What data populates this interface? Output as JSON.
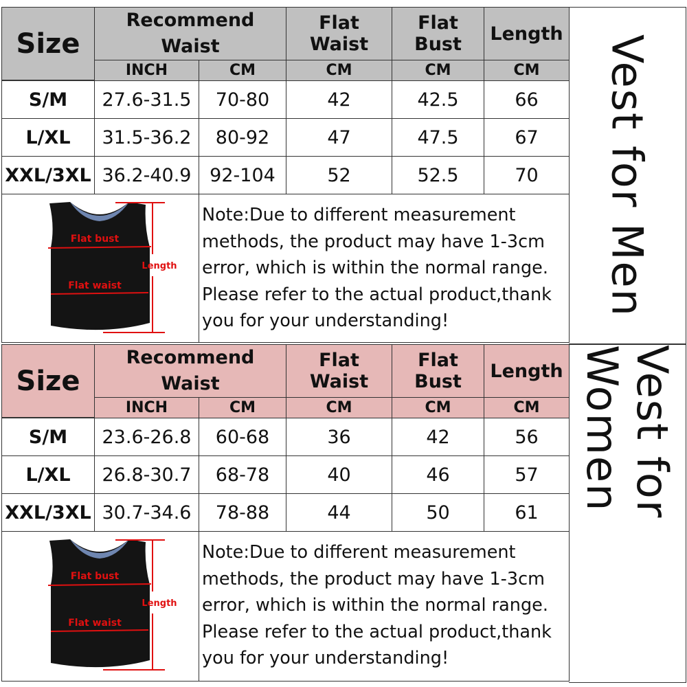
{
  "header": {
    "size": "Size",
    "recommend_waist": "Recommend Waist",
    "flat_waist": "Flat Waist",
    "flat_bust": "Flat Bust",
    "length": "Length",
    "inch": "INCH",
    "cm": "CM"
  },
  "diagram_labels": {
    "flat_bust": "Flat bust",
    "flat_waist": "Flat waist",
    "length": "Length"
  },
  "note": [
    "Note:Due to different measurement",
    "methods, the product may have 1-3cm",
    "error, which is within the normal range.",
    "Please refer to the actual product,thank",
    "you for your understanding!"
  ],
  "colors": {
    "men_header": "#c0c0c0",
    "women_header": "#e6b8b7",
    "measure_lines": "#e01010"
  },
  "men": {
    "title": "Vest for Men",
    "rows": [
      {
        "size": "S/M",
        "inch": "27.6-31.5",
        "cm": "70-80",
        "flat_waist": "42",
        "flat_bust": "42.5",
        "length": "66"
      },
      {
        "size": "L/XL",
        "inch": "31.5-36.2",
        "cm": "80-92",
        "flat_waist": "47",
        "flat_bust": "47.5",
        "length": "67"
      },
      {
        "size": "XXL/3XL",
        "inch": "36.2-40.9",
        "cm": "92-104",
        "flat_waist": "52",
        "flat_bust": "52.5",
        "length": "70"
      }
    ]
  },
  "women": {
    "title": "Vest for Women",
    "rows": [
      {
        "size": "S/M",
        "inch": "23.6-26.8",
        "cm": "60-68",
        "flat_waist": "36",
        "flat_bust": "42",
        "length": "56"
      },
      {
        "size": "L/XL",
        "inch": "26.8-30.7",
        "cm": "68-78",
        "flat_waist": "40",
        "flat_bust": "46",
        "length": "57"
      },
      {
        "size": "XXL/3XL",
        "inch": "30.7-34.6",
        "cm": "78-88",
        "flat_waist": "44",
        "flat_bust": "50",
        "length": "61"
      }
    ]
  }
}
